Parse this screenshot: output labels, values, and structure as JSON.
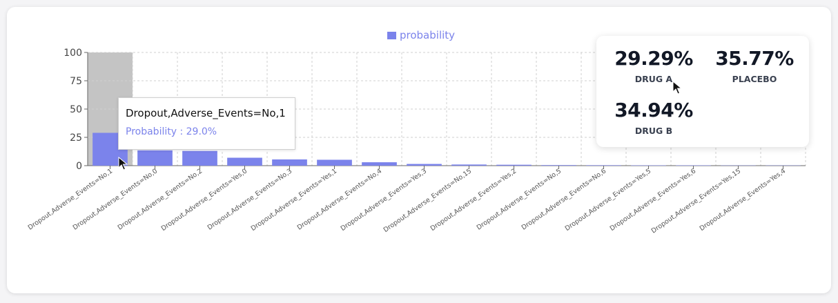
{
  "chart_data": {
    "type": "bar",
    "legend": {
      "label": "probability",
      "position": "top-center"
    },
    "categories": [
      "Dropout,Adverse_Events=No,1",
      "Dropout,Adverse_Events=No,0",
      "Dropout,Adverse_Events=No,2",
      "Dropout,Adverse_Events=Yes,0",
      "Dropout,Adverse_Events=No,3",
      "Dropout,Adverse_Events=Yes,1",
      "Dropout,Adverse_Events=No,4",
      "Dropout,Adverse_Events=Yes,3",
      "Dropout,Adverse_Events=No,15",
      "Dropout,Adverse_Events=Yes,2",
      "Dropout,Adverse_Events=No,5",
      "Dropout,Adverse_Events=No,6",
      "Dropout,Adverse_Events=Yes,5",
      "Dropout,Adverse_Events=Yes,6",
      "Dropout,Adverse_Events=Yes,15",
      "Dropout,Adverse_Events=Yes,4"
    ],
    "series": [
      {
        "name": "probability",
        "values": [
          29.0,
          13.5,
          13.0,
          7.0,
          5.5,
          5.2,
          3.0,
          1.5,
          1.0,
          0.8,
          0.5,
          0.4,
          0.3,
          0.3,
          0.2,
          0.2
        ]
      }
    ],
    "ylim": [
      0,
      100
    ],
    "yticks": [
      0,
      25,
      50,
      75,
      100
    ],
    "grid": true,
    "highlighted_index": 0,
    "colors": {
      "bar": "#7b83eb",
      "highlight": "#c4c4c4",
      "grid": "#cfcfcf"
    }
  },
  "tooltip": {
    "title": "Dropout,Adverse_Events=No,1",
    "value": "Probability : 29.0%"
  },
  "stats": [
    {
      "value": "29.29%",
      "label": "DRUG A"
    },
    {
      "value": "35.77%",
      "label": "PLACEBO"
    },
    {
      "value": "34.94%",
      "label": "DRUG B"
    }
  ]
}
